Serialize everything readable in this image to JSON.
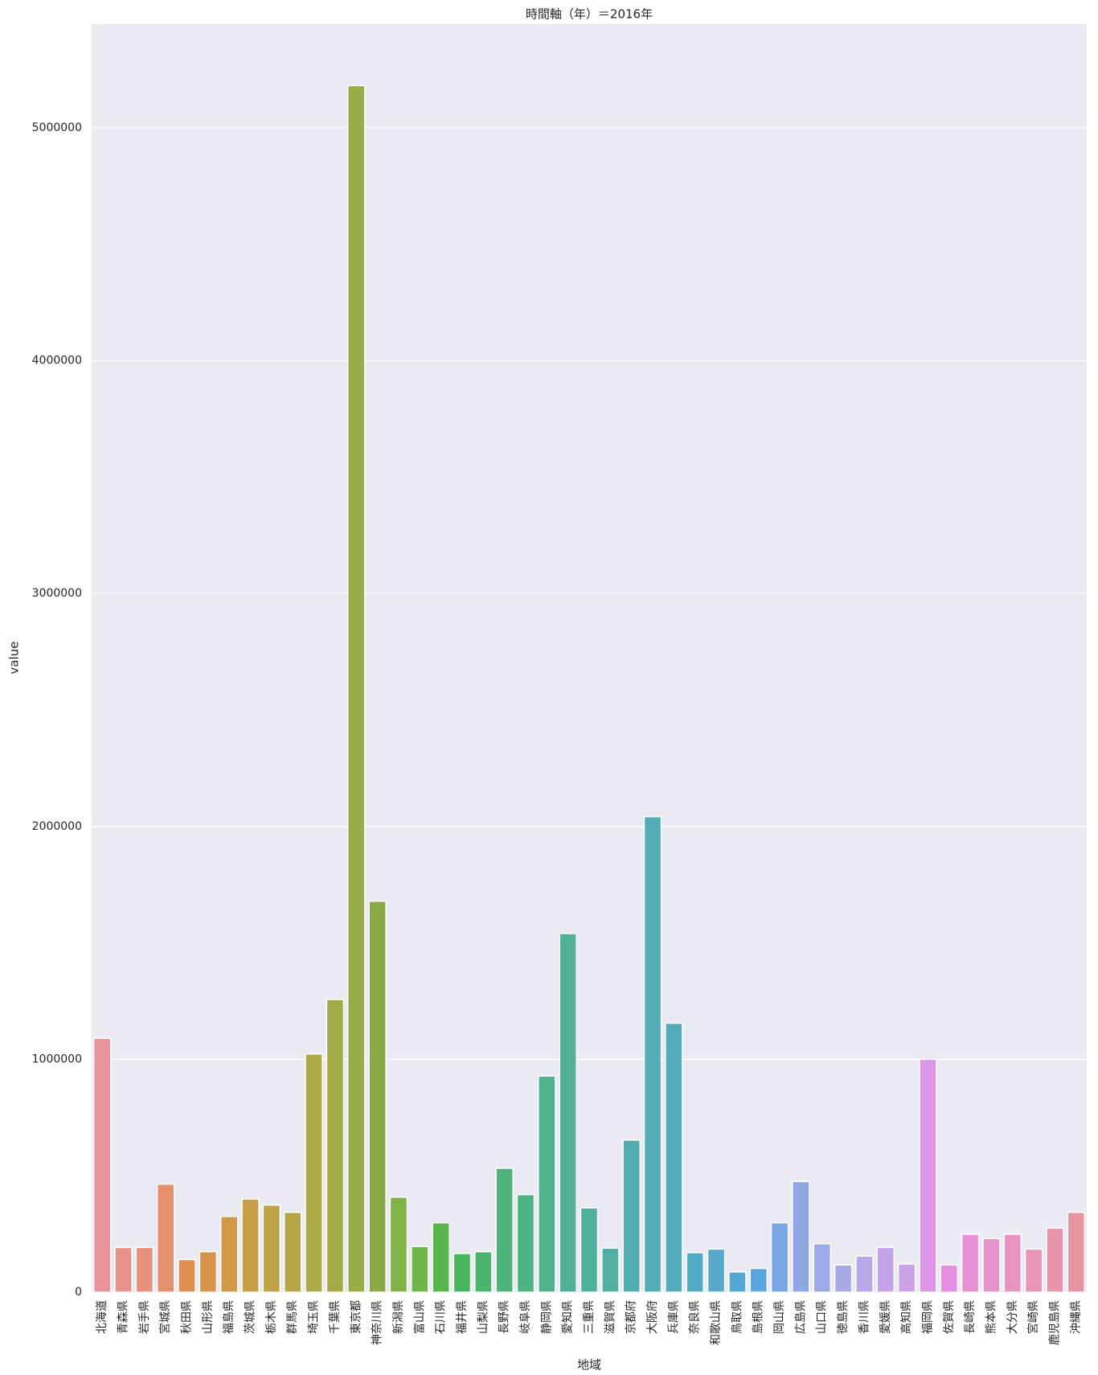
{
  "chart_data": {
    "type": "bar",
    "title": "時間軸（年）＝2016年",
    "xlabel": "地域",
    "ylabel": "value",
    "categories": [
      "北海道",
      "青森県",
      "岩手県",
      "宮城県",
      "秋田県",
      "山形県",
      "福島県",
      "茨城県",
      "栃木県",
      "群馬県",
      "埼玉県",
      "千葉県",
      "東京都",
      "神奈川県",
      "新潟県",
      "富山県",
      "石川県",
      "福井県",
      "山梨県",
      "長野県",
      "岐阜県",
      "静岡県",
      "愛知県",
      "三重県",
      "滋賀県",
      "京都府",
      "大阪府",
      "兵庫県",
      "奈良県",
      "和歌山県",
      "鳥取県",
      "島根県",
      "岡山県",
      "広島県",
      "山口県",
      "徳島県",
      "香川県",
      "愛媛県",
      "高知県",
      "福岡県",
      "佐賀県",
      "長崎県",
      "熊本県",
      "大分県",
      "宮崎県",
      "鹿児島県",
      "沖縄県"
    ],
    "values": [
      1090000,
      192000,
      192000,
      464000,
      140000,
      174000,
      325000,
      400000,
      374000,
      343000,
      1023000,
      1257000,
      5181000,
      1679000,
      408000,
      196000,
      298000,
      166000,
      174000,
      532000,
      419000,
      928000,
      1540000,
      362000,
      189000,
      653000,
      2042000,
      1155000,
      170000,
      185000,
      87000,
      102000,
      298000,
      475000,
      208000,
      117000,
      155000,
      192000,
      121000,
      1000000,
      117000,
      249000,
      230000,
      249000,
      185000,
      275000,
      343000
    ],
    "colors": [
      "#e8939b",
      "#e6928b",
      "#e5917c",
      "#e3906d",
      "#dd8d4f",
      "#d8934a",
      "#cf9948",
      "#c69e48",
      "#bea247",
      "#b5a547",
      "#aca847",
      "#a2ab47",
      "#97ae47",
      "#8aaa47",
      "#7fb247",
      "#6fb549",
      "#57b64b",
      "#48b55c",
      "#4bb46e",
      "#4db37a",
      "#4eb284",
      "#4fb28d",
      "#50b196",
      "#50b09e",
      "#51afa6",
      "#52aead",
      "#53adb4",
      "#54acbb",
      "#55abc3",
      "#56a9cb",
      "#57a7d5",
      "#5aa4e0",
      "#7aa6e3",
      "#8fa7e5",
      "#9ea8e6",
      "#aba8e7",
      "#b7a7e8",
      "#c2a5e9",
      "#cea2e9",
      "#db96e6",
      "#e48fe4",
      "#e691d6",
      "#e692ca",
      "#e693c0",
      "#e794b6",
      "#e794ac",
      "#e894a3"
    ],
    "ylim": [
      0,
      5445000
    ],
    "yticks": [
      0,
      1000000,
      2000000,
      3000000,
      4000000,
      5000000
    ],
    "grid": true
  }
}
